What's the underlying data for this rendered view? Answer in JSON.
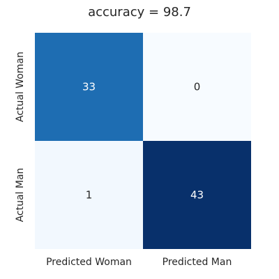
{
  "chart_data": {
    "type": "heatmap",
    "title": "accuracy = 98.7",
    "xlabel": "",
    "ylabel": "",
    "row_labels": [
      "Actual Woman",
      "Actual Man"
    ],
    "col_labels": [
      "Predicted Woman",
      "Predicted Man"
    ],
    "values": [
      [
        33,
        0
      ],
      [
        1,
        43
      ]
    ],
    "value_range": [
      0,
      43
    ],
    "colormap": "Blues",
    "colorbar": false,
    "grid": false
  },
  "colors": {
    "low": "#f7fbff",
    "mid": "#1f6eb3",
    "high": "#08306b",
    "text_light": "#ffffff",
    "text_dark": "#262626"
  }
}
